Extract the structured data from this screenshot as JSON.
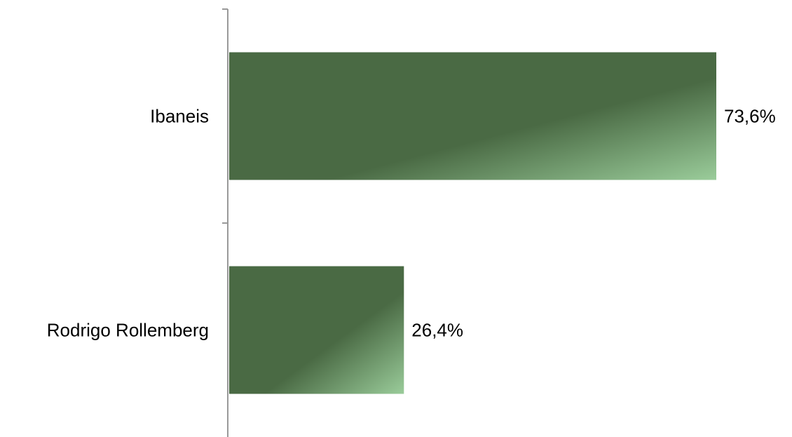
{
  "chart_data": {
    "type": "bar",
    "orientation": "horizontal",
    "categories": [
      "Ibaneis",
      "Rodrigo Rollemberg"
    ],
    "values": [
      73.6,
      26.4
    ],
    "value_labels": [
      "73,6%",
      "26,4%"
    ],
    "unit": "%",
    "xlim": [
      0,
      100
    ],
    "grid": false,
    "legend": "none",
    "bar_color": "#4a6a44",
    "bar_highlight_color": "#9acc9a",
    "axis_color": "#999999"
  }
}
